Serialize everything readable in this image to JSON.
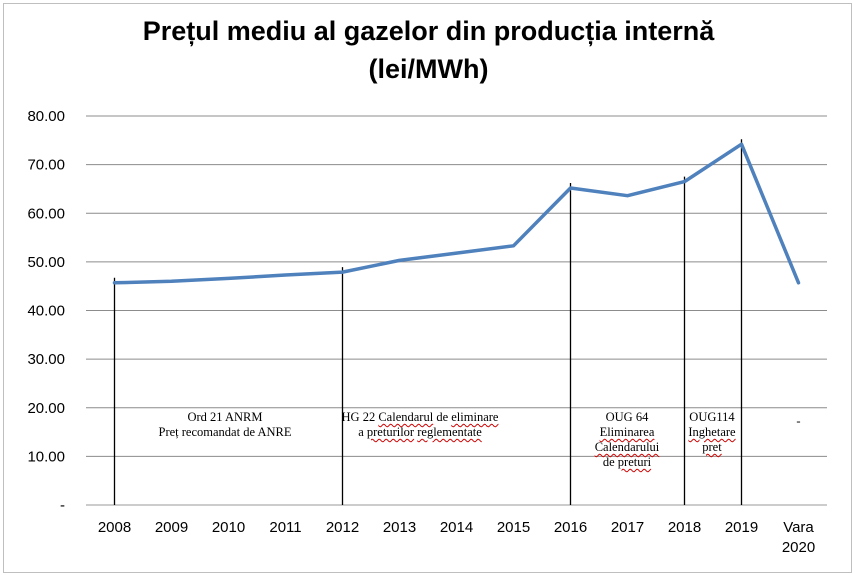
{
  "chart_data": {
    "type": "line",
    "title_lines": [
      "Prețul mediu al gazelor din producția internă",
      "(lei/MWh)"
    ],
    "categories": [
      "2008",
      "2009",
      "2010",
      "2011",
      "2012",
      "2013",
      "2014",
      "2015",
      "2016",
      "2017",
      "2018",
      "2019",
      "Vara 2020"
    ],
    "values": [
      45.7,
      46.0,
      46.6,
      47.3,
      47.9,
      50.3,
      51.8,
      53.3,
      65.2,
      63.6,
      66.5,
      74.2,
      45.7
    ],
    "ylim": [
      0,
      80
    ],
    "ytick_labels": [
      "-",
      "10.00",
      "20.00",
      "30.00",
      "40.00",
      "50.00",
      "60.00",
      "70.00",
      "80.00"
    ],
    "grid": true,
    "line_color": "#4f81bd",
    "markers": [
      {
        "at": "2008",
        "lines": [
          "Ord 21 ANRM",
          "Preț recomandat de ANRE"
        ]
      },
      {
        "at": "2012",
        "lines": [
          "HG 22 Calendarul de eliminare",
          "a preturilor reglementate"
        ]
      },
      {
        "at": "2016",
        "lines": [
          "OUG 64",
          "Eliminarea",
          "Calendarului",
          "de preturi"
        ]
      },
      {
        "at": "2018",
        "lines": [
          "OUG114",
          "Inghetare",
          "pret"
        ]
      },
      {
        "at": "2019",
        "lines": []
      },
      {
        "at": "Vara 2020",
        "lines": [
          "-"
        ]
      }
    ]
  }
}
